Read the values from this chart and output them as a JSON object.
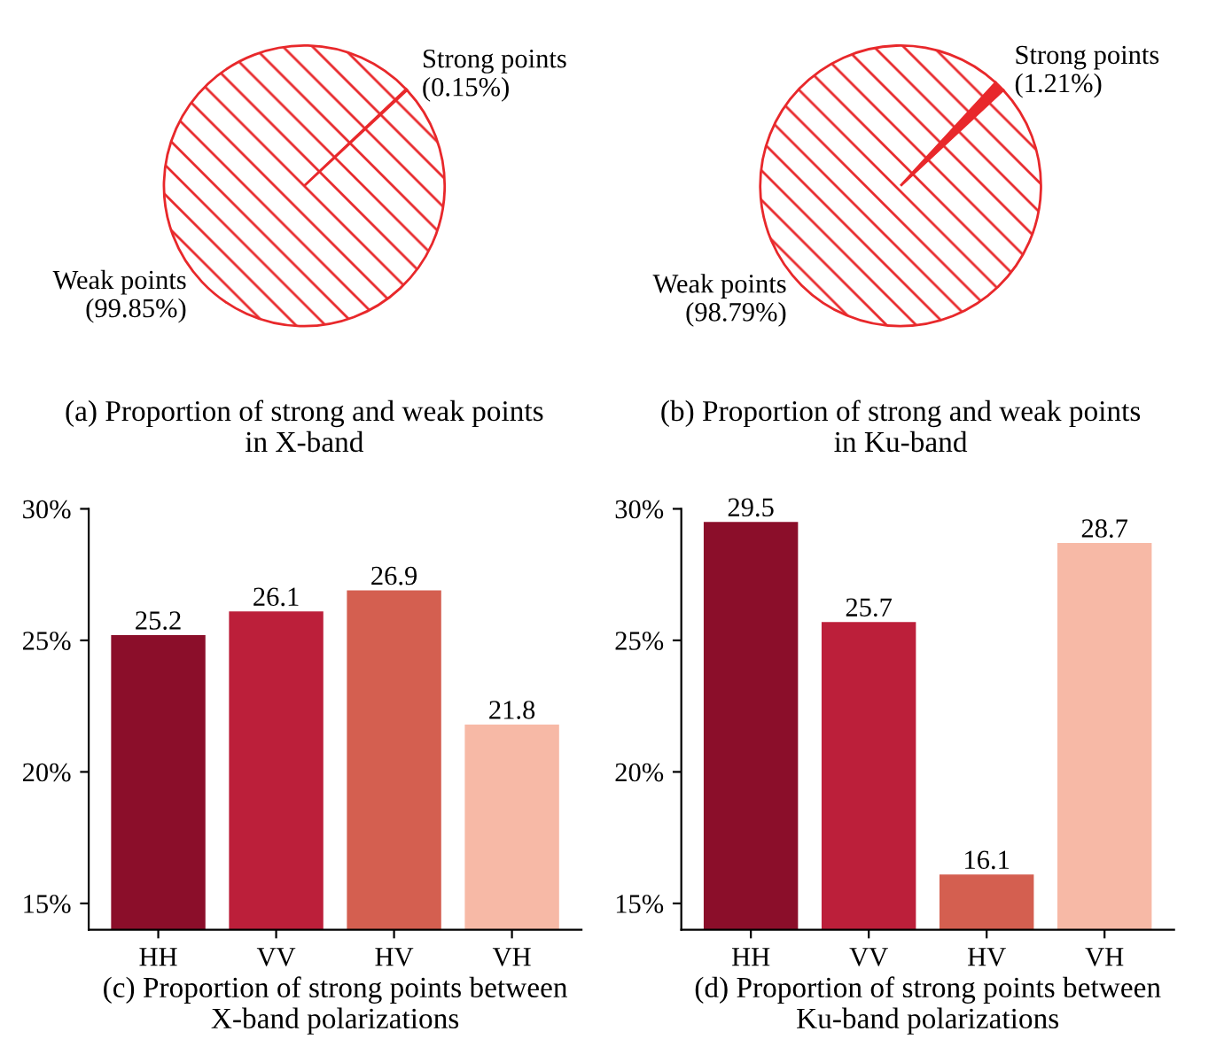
{
  "chart_data": [
    {
      "type": "pie",
      "title": "(a) Proportion of strong and weak points\nin X-band",
      "categories": [
        "Strong points",
        "Weak points"
      ],
      "values": [
        0.15,
        99.85
      ],
      "value_labels": [
        "(0.15%)",
        "(99.85%)"
      ],
      "colors": [
        "#e8282b",
        "#ffffff"
      ]
    },
    {
      "type": "pie",
      "title": "(b) Proportion of strong and weak points\nin Ku-band",
      "categories": [
        "Strong points",
        "Weak points"
      ],
      "values": [
        1.21,
        98.79
      ],
      "value_labels": [
        "(1.21%)",
        "(98.79%)"
      ],
      "colors": [
        "#e8282b",
        "#ffffff"
      ]
    },
    {
      "type": "bar",
      "title": "(c) Proportion of strong points between\nX-band polarizations",
      "categories": [
        "HH",
        "VV",
        "HV",
        "VH"
      ],
      "values": [
        25.2,
        26.1,
        26.9,
        21.8
      ],
      "colors": [
        "#8b0e2a",
        "#bc1f3a",
        "#d45f50",
        "#f7b9a6"
      ],
      "ylim": [
        14,
        30
      ],
      "yticks": [
        {
          "value": 15,
          "label": "15%"
        },
        {
          "value": 20,
          "label": "20%"
        },
        {
          "value": 25,
          "label": "25%"
        },
        {
          "value": 30,
          "label": "30%"
        }
      ],
      "data_labels": true
    },
    {
      "type": "bar",
      "title": "(d) Proportion of strong points between\nKu-band polarizations",
      "categories": [
        "HH",
        "VV",
        "HV",
        "VH"
      ],
      "values": [
        29.5,
        25.7,
        16.1,
        28.7
      ],
      "colors": [
        "#8b0e2a",
        "#bc1f3a",
        "#d45f50",
        "#f7b9a6"
      ],
      "ylim": [
        14,
        30
      ],
      "yticks": [
        {
          "value": 15,
          "label": "15%"
        },
        {
          "value": 20,
          "label": "20%"
        },
        {
          "value": 25,
          "label": "25%"
        },
        {
          "value": 30,
          "label": "30%"
        }
      ],
      "data_labels": true
    }
  ]
}
